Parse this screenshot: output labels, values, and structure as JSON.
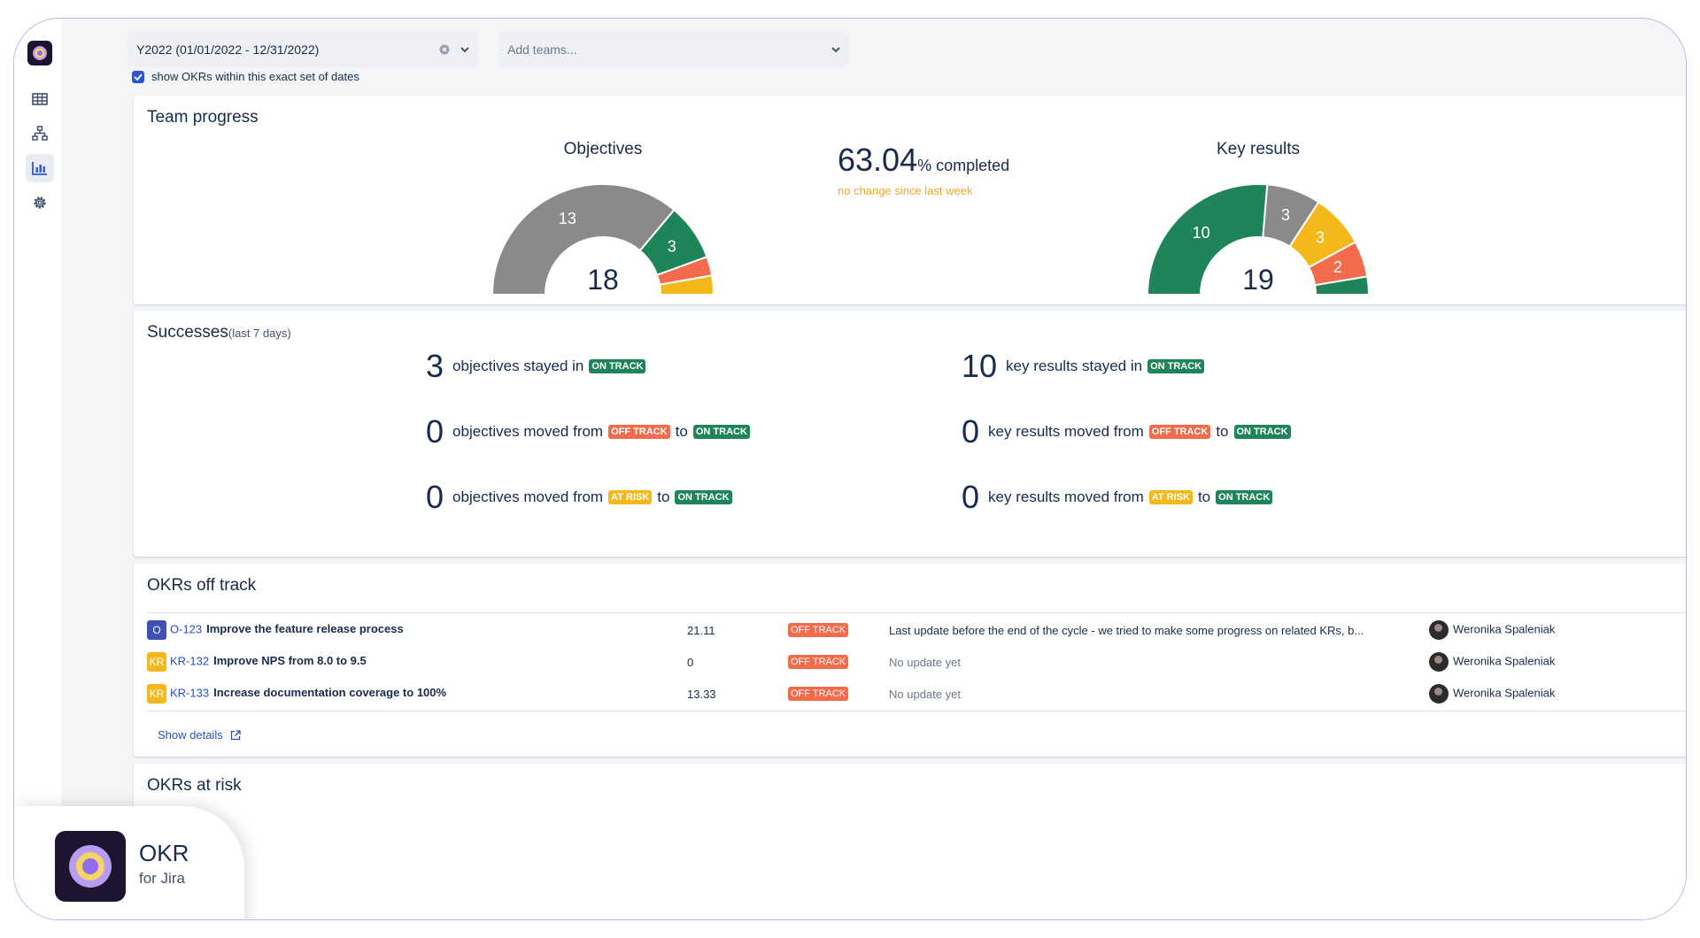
{
  "filters": {
    "date_range": "Y2022 (01/01/2022 - 12/31/2022)",
    "teams_placeholder": "Add teams...",
    "exact_dates_label": "show OKRs within this exact set of dates"
  },
  "sidebar": {
    "items": [
      {
        "name": "table-icon"
      },
      {
        "name": "hierarchy-icon"
      },
      {
        "name": "bar-chart-icon",
        "active": true
      },
      {
        "name": "gear-icon"
      }
    ]
  },
  "team_progress": {
    "title": "Team progress",
    "objectives": {
      "title": "Objectives",
      "total": "18",
      "segments": [
        {
          "label": "13",
          "value": 13,
          "color": "#8a8a8a"
        },
        {
          "label": "3",
          "value": 3,
          "color": "#1f845a"
        },
        {
          "label": "",
          "value": 1,
          "color": "#f26b4b"
        },
        {
          "label": "",
          "value": 1,
          "color": "#f5b81a"
        }
      ]
    },
    "completed": {
      "value": "63.04",
      "suffix": "% completed",
      "note": "no change since last week"
    },
    "key_results": {
      "title": "Key results",
      "total": "19",
      "segments": [
        {
          "label": "10",
          "value": 10,
          "color": "#1f845a"
        },
        {
          "label": "3",
          "value": 3,
          "color": "#8a8a8a"
        },
        {
          "label": "3",
          "value": 3,
          "color": "#f5b81a"
        },
        {
          "label": "2",
          "value": 2,
          "color": "#f26b4b"
        },
        {
          "label": "",
          "value": 1,
          "color": "#1f845a"
        }
      ]
    }
  },
  "successes": {
    "title": "Successes",
    "subtitle": "(last 7 days)",
    "objectives": [
      {
        "count": "3",
        "text": "objectives stayed in",
        "from": "",
        "from_class": "",
        "to_word": "",
        "to": "ON TRACK"
      },
      {
        "count": "0",
        "text": "objectives moved from",
        "from": "OFF TRACK",
        "from_class": "l-off",
        "to_word": "to",
        "to": "ON TRACK"
      },
      {
        "count": "0",
        "text": "objectives moved from",
        "from": "AT RISK",
        "from_class": "l-risk",
        "to_word": "to",
        "to": "ON TRACK"
      }
    ],
    "key_results": [
      {
        "count": "10",
        "text": "key results stayed in",
        "from": "",
        "from_class": "",
        "to_word": "",
        "to": "ON TRACK"
      },
      {
        "count": "0",
        "text": "key results moved from",
        "from": "OFF TRACK",
        "from_class": "l-off",
        "to_word": "to",
        "to": "ON TRACK"
      },
      {
        "count": "0",
        "text": "key results moved from",
        "from": "AT RISK",
        "from_class": "l-risk",
        "to_word": "to",
        "to": "ON TRACK"
      }
    ]
  },
  "off_track": {
    "title": "OKRs off track",
    "rows": [
      {
        "type": "O",
        "type_color": "#3f51b5",
        "key": "O-123",
        "name": "Improve the feature release process",
        "progress": "21.11",
        "status": "OFF TRACK",
        "update": "Last update before the end of the cycle - we tried to make some progress on related KRs, b...",
        "update_muted": false,
        "owner": "Weronika Spaleniak"
      },
      {
        "type": "KR",
        "type_color": "#f5b81a",
        "key": "KR-132",
        "name": "Improve NPS from 8.0 to 9.5",
        "progress": "0",
        "status": "OFF TRACK",
        "update": "No update yet",
        "update_muted": true,
        "owner": "Weronika Spaleniak"
      },
      {
        "type": "KR",
        "type_color": "#f5b81a",
        "key": "KR-133",
        "name": "Increase documentation coverage to 100%",
        "progress": "13.33",
        "status": "OFF TRACK",
        "update": "No update yet",
        "update_muted": true,
        "owner": "Weronika Spaleniak"
      }
    ],
    "show_details": "Show details"
  },
  "at_risk": {
    "title": "OKRs at risk"
  },
  "brand": {
    "name": "OKR",
    "subtitle": "for Jira"
  }
}
